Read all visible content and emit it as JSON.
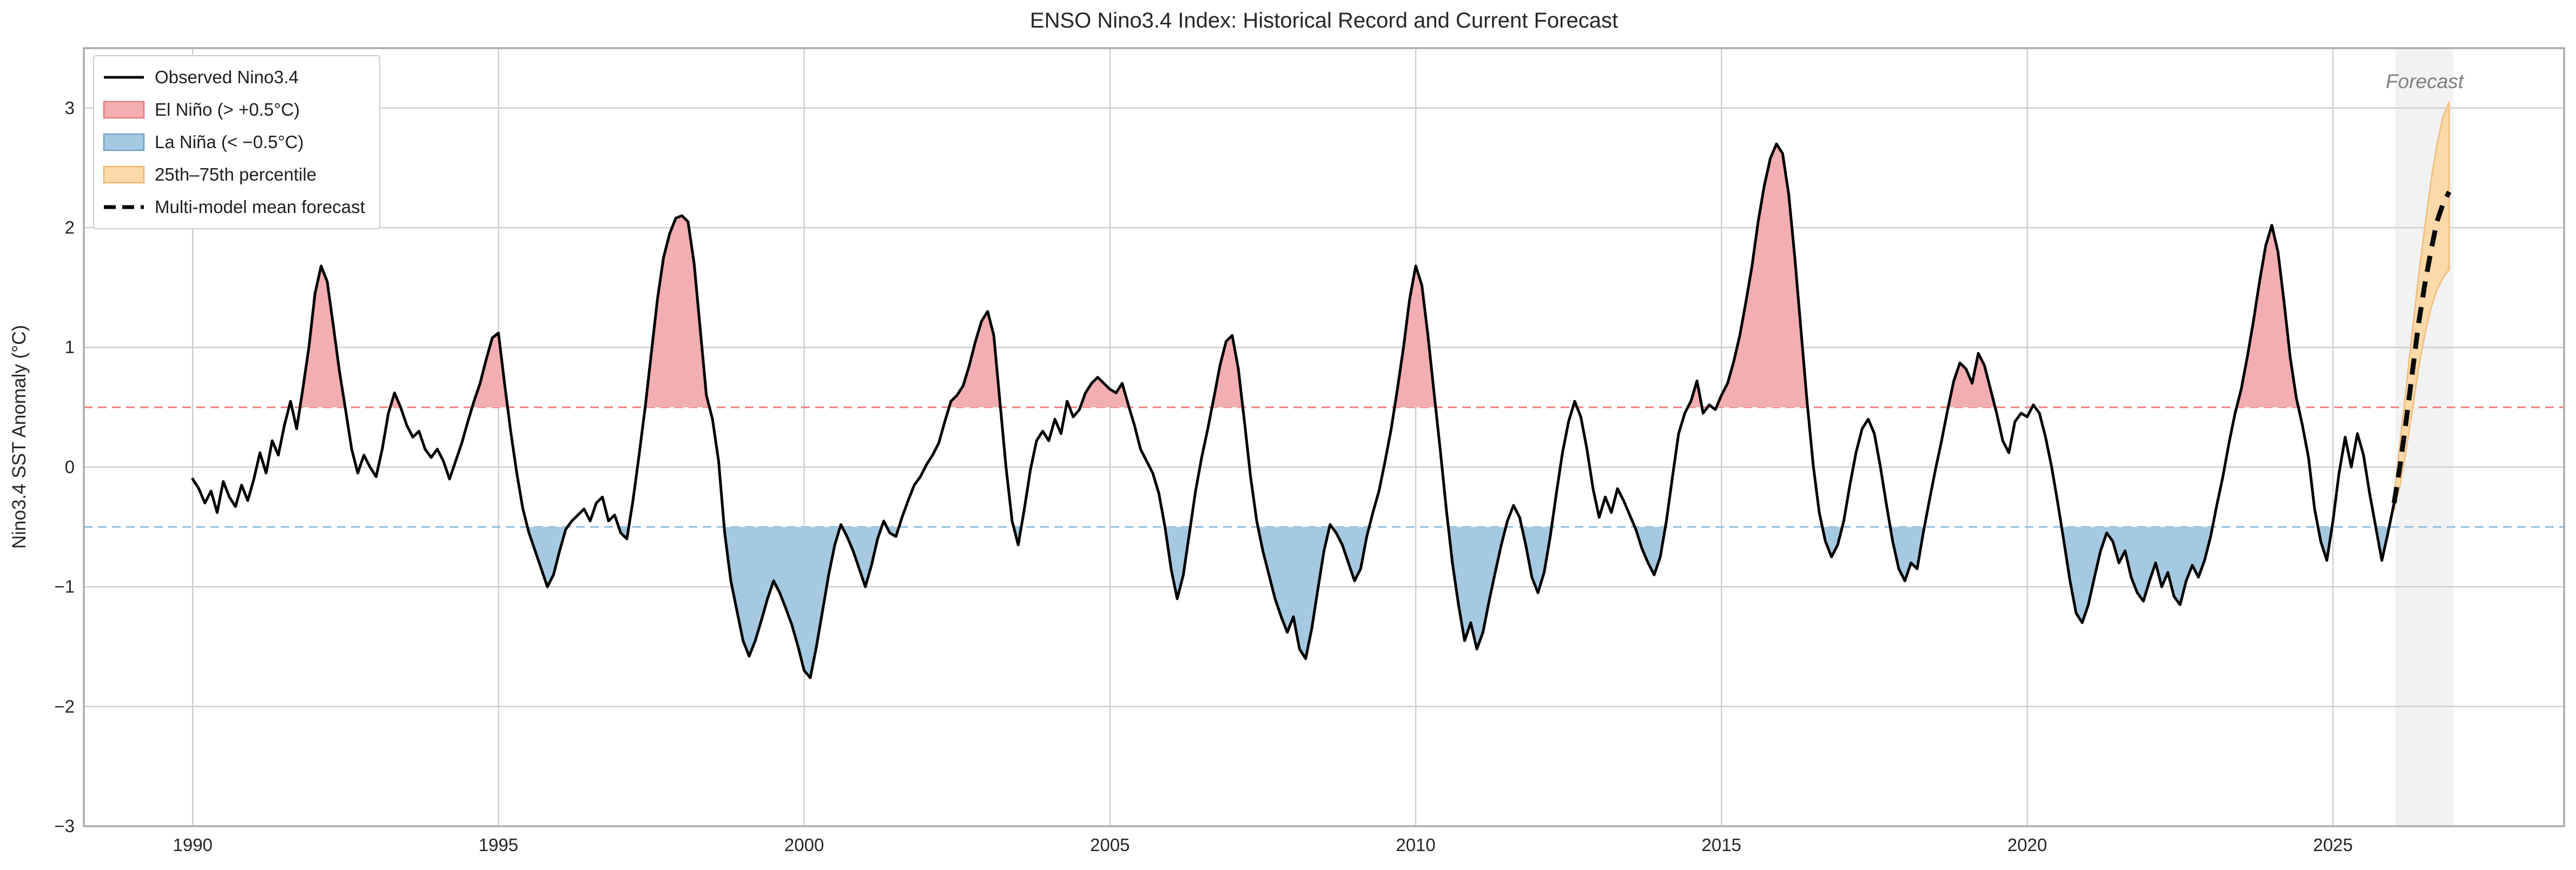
{
  "title": "ENSO Nino3.4 Index: Historical Record and Current Forecast",
  "colors": {
    "background": "#ffffff",
    "grid": "#cdcdcd",
    "spine": "#ababab",
    "observed": "#000000",
    "el_nino_fill": "#F2AEB1",
    "la_nina_fill": "#A5C9E0",
    "el_nino_threshold": "#F08080",
    "la_nina_threshold": "#94BFDC",
    "forecast_band": "#FBD9A8",
    "forecast_band_edge": "#F0BC7E",
    "forecast_mean": "#0a0a0a",
    "forecast_region": "#F2F2F2",
    "forecast_label": "#7f7f7f",
    "title_color": "#262626",
    "tick_color": "#262626"
  },
  "chart_data": {
    "type": "line",
    "title": "ENSO Nino3.4 Index: Historical Record and Current Forecast",
    "xlabel": "",
    "ylabel": "Nino3.4 SST Anomaly (°C)",
    "xlim": [
      1988.22,
      2028.78
    ],
    "ylim": [
      -3.0,
      3.5
    ],
    "grid": true,
    "xticks": [
      1990,
      1995,
      2000,
      2005,
      2010,
      2015,
      2020,
      2025
    ],
    "yticks": [
      {
        "v": 3,
        "label": "3"
      },
      {
        "v": 2,
        "label": "2"
      },
      {
        "v": 1,
        "label": "1"
      },
      {
        "v": 0,
        "label": "0"
      },
      {
        "v": -1,
        "label": "−1"
      },
      {
        "v": -2,
        "label": "−2"
      },
      {
        "v": -3,
        "label": "−3"
      }
    ],
    "thresholds": {
      "el_nino": 0.5,
      "la_nina": -0.5
    },
    "legend": [
      {
        "label": "Observed Nino3.4",
        "type": "line",
        "color": "#000000"
      },
      {
        "label": "El Niño (> +0.5°C)",
        "type": "patch",
        "color": "#F2AEB1",
        "edge": "#E8797D"
      },
      {
        "label": "La Niña (< −0.5°C)",
        "type": "patch",
        "color": "#A5C9E0",
        "edge": "#6FA3C9"
      },
      {
        "label": "25th–75th percentile",
        "type": "patch",
        "color": "#FBD9A8",
        "edge": "#EBB676"
      },
      {
        "label": "Multi-model mean forecast",
        "type": "dashed-line",
        "color": "#000000"
      }
    ],
    "annotations": [
      {
        "text": "Forecast",
        "x": 2026.5,
        "y": 3.22
      }
    ],
    "observed": {
      "x_start": 1990.0,
      "x_step": 0.1,
      "values": [
        -0.1,
        -0.18,
        -0.3,
        -0.2,
        -0.38,
        -0.12,
        -0.25,
        -0.33,
        -0.15,
        -0.28,
        -0.1,
        0.12,
        -0.05,
        0.22,
        0.1,
        0.35,
        0.55,
        0.32,
        0.65,
        1.0,
        1.45,
        1.68,
        1.55,
        1.18,
        0.8,
        0.48,
        0.15,
        -0.05,
        0.1,
        0.0,
        -0.08,
        0.15,
        0.45,
        0.62,
        0.5,
        0.35,
        0.25,
        0.3,
        0.15,
        0.08,
        0.15,
        0.05,
        -0.1,
        0.05,
        0.2,
        0.38,
        0.55,
        0.7,
        0.9,
        1.08,
        1.12,
        0.7,
        0.3,
        -0.05,
        -0.35,
        -0.55,
        -0.7,
        -0.85,
        -1.0,
        -0.9,
        -0.7,
        -0.52,
        -0.45,
        -0.4,
        -0.35,
        -0.45,
        -0.3,
        -0.25,
        -0.45,
        -0.4,
        -0.55,
        -0.6,
        -0.28,
        0.1,
        0.5,
        0.95,
        1.4,
        1.75,
        1.95,
        2.08,
        2.1,
        2.05,
        1.7,
        1.15,
        0.6,
        0.4,
        0.05,
        -0.55,
        -0.95,
        -1.2,
        -1.45,
        -1.58,
        -1.45,
        -1.28,
        -1.1,
        -0.95,
        -1.05,
        -1.18,
        -1.32,
        -1.5,
        -1.7,
        -1.76,
        -1.5,
        -1.2,
        -0.9,
        -0.65,
        -0.48,
        -0.58,
        -0.7,
        -0.85,
        -1.0,
        -0.82,
        -0.6,
        -0.45,
        -0.55,
        -0.58,
        -0.42,
        -0.28,
        -0.15,
        -0.08,
        0.02,
        0.1,
        0.2,
        0.38,
        0.55,
        0.6,
        0.68,
        0.85,
        1.05,
        1.22,
        1.3,
        1.1,
        0.55,
        0.0,
        -0.45,
        -0.65,
        -0.35,
        -0.02,
        0.22,
        0.3,
        0.22,
        0.4,
        0.28,
        0.55,
        0.42,
        0.48,
        0.62,
        0.7,
        0.75,
        0.7,
        0.65,
        0.62,
        0.7,
        0.52,
        0.35,
        0.15,
        0.05,
        -0.05,
        -0.22,
        -0.5,
        -0.85,
        -1.1,
        -0.9,
        -0.55,
        -0.2,
        0.08,
        0.32,
        0.58,
        0.85,
        1.05,
        1.1,
        0.82,
        0.38,
        -0.08,
        -0.45,
        -0.7,
        -0.9,
        -1.1,
        -1.25,
        -1.38,
        -1.25,
        -1.52,
        -1.6,
        -1.35,
        -1.02,
        -0.7,
        -0.48,
        -0.55,
        -0.65,
        -0.8,
        -0.95,
        -0.85,
        -0.58,
        -0.38,
        -0.2,
        0.05,
        0.32,
        0.65,
        1.0,
        1.4,
        1.68,
        1.52,
        1.1,
        0.62,
        0.15,
        -0.35,
        -0.8,
        -1.15,
        -1.45,
        -1.3,
        -1.52,
        -1.38,
        -1.12,
        -0.88,
        -0.65,
        -0.45,
        -0.32,
        -0.42,
        -0.65,
        -0.92,
        -1.05,
        -0.88,
        -0.58,
        -0.22,
        0.12,
        0.38,
        0.55,
        0.42,
        0.15,
        -0.18,
        -0.42,
        -0.25,
        -0.38,
        -0.18,
        -0.28,
        -0.4,
        -0.52,
        -0.68,
        -0.8,
        -0.9,
        -0.75,
        -0.45,
        -0.08,
        0.28,
        0.45,
        0.55,
        0.72,
        0.45,
        0.52,
        0.48,
        0.6,
        0.7,
        0.88,
        1.1,
        1.38,
        1.68,
        2.05,
        2.35,
        2.58,
        2.7,
        2.62,
        2.28,
        1.75,
        1.15,
        0.55,
        0.02,
        -0.38,
        -0.62,
        -0.75,
        -0.65,
        -0.45,
        -0.15,
        0.12,
        0.32,
        0.4,
        0.28,
        0.0,
        -0.32,
        -0.62,
        -0.85,
        -0.95,
        -0.8,
        -0.85,
        -0.55,
        -0.28,
        -0.02,
        0.22,
        0.48,
        0.72,
        0.87,
        0.82,
        0.7,
        0.95,
        0.85,
        0.65,
        0.45,
        0.22,
        0.12,
        0.38,
        0.45,
        0.42,
        0.52,
        0.45,
        0.25,
        0.0,
        -0.3,
        -0.62,
        -0.95,
        -1.22,
        -1.3,
        -1.15,
        -0.92,
        -0.7,
        -0.55,
        -0.62,
        -0.8,
        -0.7,
        -0.92,
        -1.05,
        -1.12,
        -0.95,
        -0.8,
        -1.0,
        -0.88,
        -1.08,
        -1.15,
        -0.95,
        -0.82,
        -0.92,
        -0.78,
        -0.58,
        -0.32,
        -0.08,
        0.2,
        0.45,
        0.65,
        0.92,
        1.22,
        1.55,
        1.85,
        2.02,
        1.8,
        1.38,
        0.92,
        0.58,
        0.35,
        0.08,
        -0.35,
        -0.62,
        -0.78,
        -0.45,
        -0.05,
        0.25,
        0.0,
        0.28,
        0.1,
        -0.22,
        -0.5,
        -0.78,
        -0.55,
        -0.3
      ]
    },
    "forecast": {
      "x_start": 2026.0,
      "x_step": 0.1,
      "mean": [
        -0.3,
        0.02,
        0.4,
        0.8,
        1.2,
        1.52,
        1.8,
        2.05,
        2.2,
        2.3
      ],
      "p25": [
        -0.36,
        -0.15,
        0.15,
        0.48,
        0.82,
        1.1,
        1.32,
        1.48,
        1.58,
        1.65
      ],
      "p75": [
        -0.24,
        0.22,
        0.68,
        1.15,
        1.6,
        2.0,
        2.38,
        2.7,
        2.93,
        3.05
      ]
    },
    "forecast_region": [
      2026.02,
      2026.97
    ]
  }
}
